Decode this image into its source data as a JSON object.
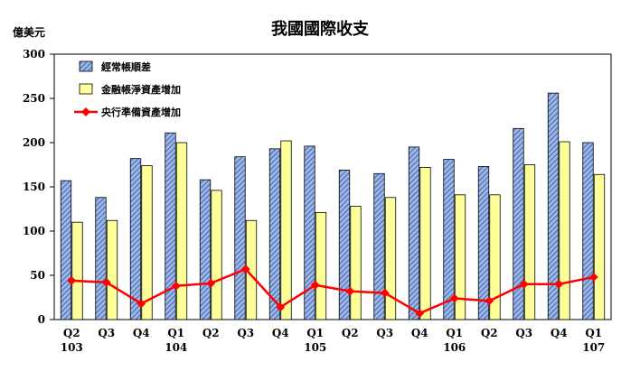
{
  "chart_data": {
    "type": "bar",
    "title": "我國國際收支",
    "ylabel": "億美元",
    "ylim": [
      0,
      300
    ],
    "yticks": [
      0,
      50,
      100,
      150,
      200,
      250,
      300
    ],
    "grid": false,
    "legend_position": "top-left",
    "categories": [
      "Q2",
      "Q3",
      "Q4",
      "Q1",
      "Q2",
      "Q3",
      "Q4",
      "Q1",
      "Q2",
      "Q3",
      "Q4",
      "Q1",
      "Q2",
      "Q3",
      "Q4",
      "Q1"
    ],
    "year_labels": [
      "103",
      "",
      "",
      "104",
      "",
      "",
      "",
      "105",
      "",
      "",
      "",
      "106",
      "",
      "",
      "",
      "107"
    ],
    "series": [
      {
        "name": "經常帳順差",
        "kind": "bar",
        "fill": "#9bb7e6",
        "hatch": "#2e4d9a",
        "values": [
          157,
          138,
          182,
          211,
          158,
          184,
          193,
          196,
          169,
          165,
          195,
          181,
          173,
          216,
          256,
          200
        ]
      },
      {
        "name": "金融帳淨資產增加",
        "kind": "bar",
        "fill": "#ffff99",
        "values": [
          110,
          112,
          174,
          200,
          146,
          112,
          202,
          121,
          128,
          138,
          172,
          141,
          141,
          175,
          201,
          164
        ]
      },
      {
        "name": "央行準備資產增加",
        "kind": "line",
        "color": "#ff0000",
        "values": [
          44,
          42,
          18,
          38,
          41,
          57,
          14,
          39,
          32,
          30,
          7,
          24,
          21,
          40,
          40,
          48
        ]
      }
    ]
  }
}
